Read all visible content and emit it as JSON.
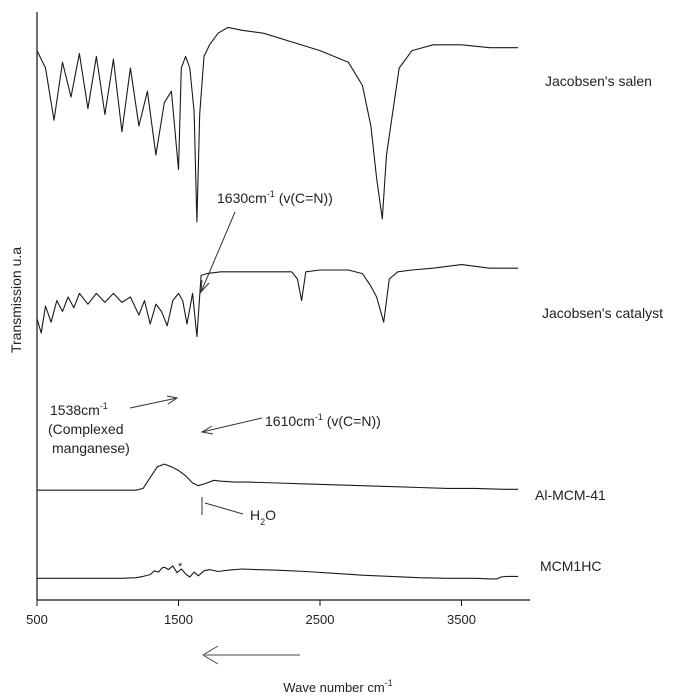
{
  "chart_data": {
    "type": "line",
    "xlabel": "Wave number cm",
    "xlabel_sup": "-1",
    "ylabel": "Transmission u.a",
    "xlim": [
      500,
      4000
    ],
    "xticks": [
      "500",
      "1500",
      "2500",
      "3500"
    ],
    "xtick_values": [
      500,
      1500,
      2500,
      3500
    ],
    "y_units": "arbitrary (offset spectra)",
    "direction_arrow": "pointing left (decreasing wave number)",
    "series": [
      {
        "name": "Jacobsen's salen",
        "x": [
          500,
          560,
          620,
          680,
          740,
          800,
          860,
          920,
          980,
          1040,
          1100,
          1160,
          1220,
          1280,
          1340,
          1400,
          1450,
          1500,
          1520,
          1550,
          1580,
          1610,
          1630,
          1650,
          1680,
          1720,
          1780,
          1850,
          1950,
          2100,
          2300,
          2500,
          2700,
          2800,
          2860,
          2900,
          2940,
          2970,
          3000,
          3060,
          3150,
          3300,
          3500,
          3700,
          3900
        ],
        "y": [
          86,
          80,
          62,
          82,
          70,
          85,
          66,
          84,
          64,
          83,
          58,
          80,
          60,
          72,
          50,
          68,
          72,
          45,
          80,
          84,
          80,
          65,
          27,
          64,
          84,
          88,
          92,
          94,
          93,
          92,
          89,
          86,
          82,
          74,
          60,
          42,
          28,
          50,
          60,
          80,
          86,
          88,
          88,
          87,
          87
        ]
      },
      {
        "name": "Jacobsen's catalyst",
        "x": [
          500,
          530,
          560,
          600,
          640,
          680,
          720,
          760,
          800,
          860,
          920,
          980,
          1040,
          1100,
          1160,
          1220,
          1260,
          1300,
          1340,
          1380,
          1420,
          1460,
          1500,
          1530,
          1560,
          1600,
          1630,
          1660,
          1700,
          1800,
          1900,
          2000,
          2100,
          2200,
          2300,
          2340,
          2370,
          2400,
          2500,
          2600,
          2700,
          2800,
          2860,
          2900,
          2950,
          2990,
          3050,
          3150,
          3300,
          3500,
          3700,
          3900
        ],
        "y": [
          48,
          40,
          55,
          46,
          58,
          52,
          60,
          54,
          62,
          56,
          62,
          57,
          62,
          57,
          60,
          50,
          58,
          45,
          56,
          52,
          44,
          58,
          62,
          58,
          45,
          62,
          38,
          72,
          73,
          74,
          74,
          74,
          74,
          74,
          74,
          70,
          58,
          74,
          75,
          75,
          75,
          73,
          66,
          60,
          46,
          70,
          74,
          75,
          76,
          78,
          76,
          76
        ]
      },
      {
        "name": "Al-MCM-41",
        "x": [
          500,
          700,
          900,
          1100,
          1200,
          1250,
          1300,
          1350,
          1400,
          1450,
          1500,
          1550,
          1600,
          1640,
          1700,
          1750,
          1800,
          1900,
          2000,
          2200,
          2400,
          2600,
          2800,
          3000,
          3200,
          3400,
          3600,
          3800,
          3900
        ],
        "y": [
          22,
          22,
          22,
          22,
          22,
          24,
          36,
          48,
          51,
          48,
          44,
          38,
          30,
          27,
          30,
          33,
          32,
          31,
          31,
          30,
          29,
          28,
          27,
          26,
          25,
          24,
          24,
          23,
          23
        ]
      },
      {
        "name": "MCM1HC",
        "x": [
          500,
          700,
          900,
          1100,
          1200,
          1250,
          1300,
          1330,
          1360,
          1380,
          1400,
          1430,
          1460,
          1490,
          1520,
          1550,
          1580,
          1610,
          1640,
          1680,
          1720,
          1780,
          1850,
          1950,
          2050,
          2200,
          2400,
          2600,
          2800,
          3000,
          3200,
          3400,
          3600,
          3700,
          3750,
          3780,
          3820,
          3900
        ],
        "y": [
          6,
          6,
          6,
          6,
          7,
          9,
          12,
          18,
          16,
          22,
          24,
          20,
          26,
          15,
          21,
          13,
          8,
          16,
          10,
          18,
          20,
          17,
          19,
          21,
          20,
          19,
          17,
          14,
          11,
          9,
          7,
          6,
          6,
          5,
          5,
          8,
          9,
          9
        ]
      }
    ],
    "series_labels": [
      "Jacobsen's salen",
      "Jacobsen's catalyst",
      "Al-MCM-41",
      "MCM1HC"
    ],
    "annotations": [
      {
        "text": "1630cm",
        "sup": "-1",
        "rest": " (v(C=N))",
        "x": 1630
      },
      {
        "text": "1610cm",
        "sup": "-1",
        "rest": " (v(C=N))",
        "x": 1610
      },
      {
        "text": "1538cm",
        "sup": "-1",
        "line2": "(Complexed",
        "line3": "manganese)",
        "x": 1538
      },
      {
        "text": "H",
        "sub": "2",
        "rest": "O",
        "x": 1640
      }
    ],
    "asterisk": "*",
    "grid": false,
    "line_color": "#1a1a1a"
  }
}
